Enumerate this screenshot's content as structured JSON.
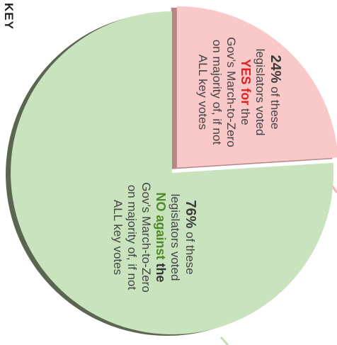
{
  "key_label": "KEY",
  "chart_data": {
    "type": "pie",
    "slices": [
      {
        "percent": 24,
        "pct_label": "24%",
        "lead": " of these",
        "line2": "legislators voted",
        "vote_word": "YES for",
        "vote_after": " the",
        "line4": "Gov’s March-to-Zero",
        "line5": "on majority of, if not",
        "line6": "ALL key votes",
        "fill": "#f9c9c9",
        "side": "#b98484",
        "exploded": true
      },
      {
        "percent": 76,
        "pct_label": "76%",
        "lead": " of these",
        "line2": "legislators voted",
        "vote_word": "NO against",
        "vote_after": " the",
        "line4": "Gov’s March-to-Zero",
        "line5": "on majority of, if not",
        "line6": "ALL key votes",
        "fill": "#c9e3bf",
        "side": "#5b6650",
        "exploded": false
      }
    ]
  }
}
